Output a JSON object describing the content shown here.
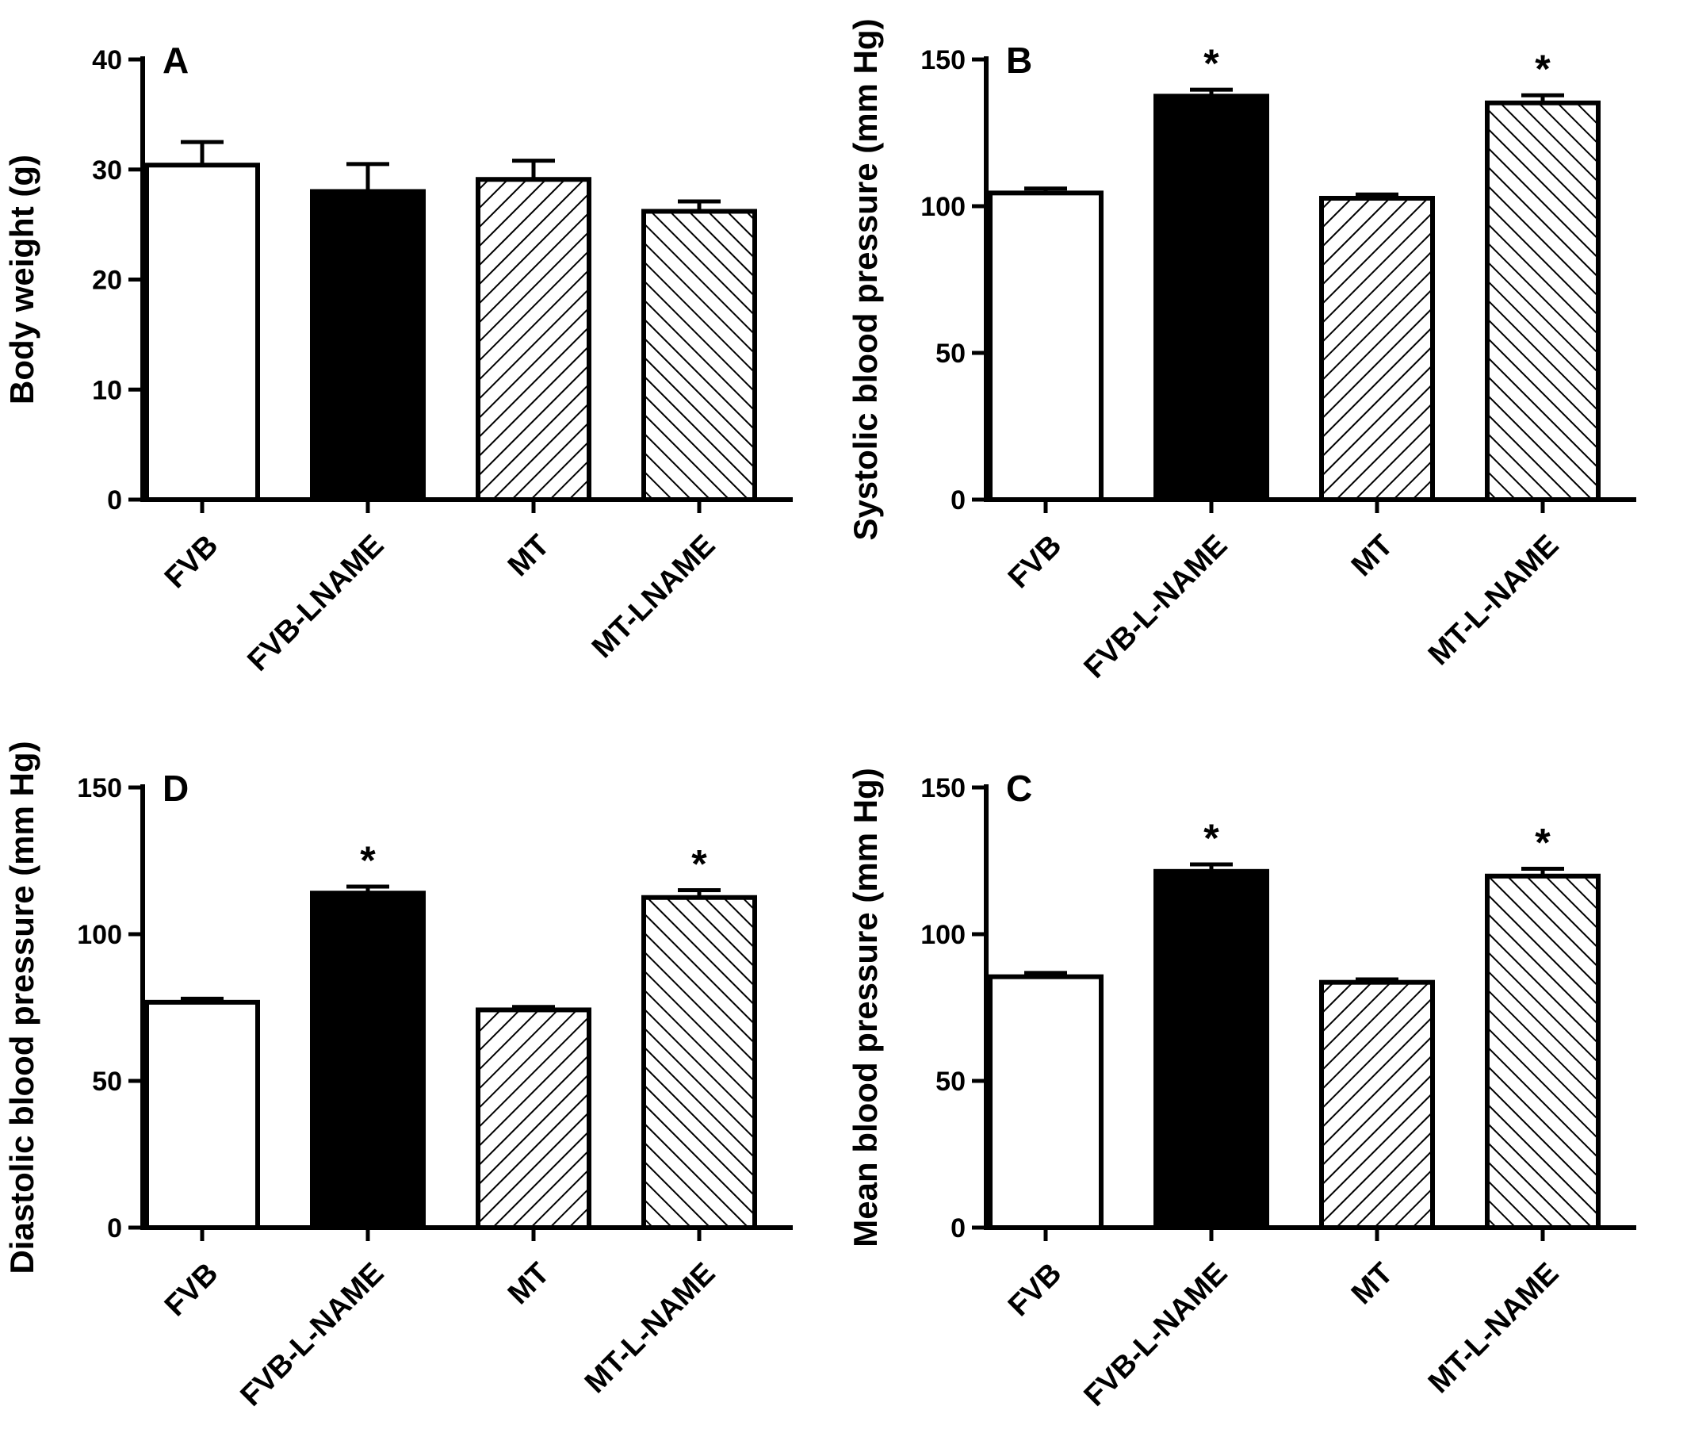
{
  "colors": {
    "axis": "#000000",
    "solid_fill": "#000000",
    "open_fill": "#ffffff",
    "hatch": "#000000"
  },
  "chart_data": [
    {
      "type": "bar",
      "panel_label": "A",
      "ylabel": "Body weight (g)",
      "ylim": [
        0,
        40
      ],
      "yticks": [
        0,
        10,
        20,
        30,
        40
      ],
      "categories": [
        "FVB",
        "FVB-LNAME",
        "MT",
        "MT-LNAME"
      ],
      "values": [
        30.4,
        28.0,
        29.1,
        26.2
      ],
      "errors": [
        2.1,
        2.5,
        1.7,
        0.9
      ],
      "significance": [
        "",
        "",
        "",
        ""
      ],
      "fills": [
        "open",
        "solid",
        "hatch-forward",
        "hatch-back"
      ]
    },
    {
      "type": "bar",
      "panel_label": "B",
      "ylabel": "Systolic blood pressure (mm Hg)",
      "ylim": [
        0,
        150
      ],
      "yticks": [
        0,
        50,
        100,
        150
      ],
      "categories": [
        "FVB",
        "FVB-L-NAME",
        "MT",
        "MT-L-NAME"
      ],
      "values": [
        104.5,
        137.5,
        102.7,
        135.2
      ],
      "errors": [
        1.5,
        2.2,
        1.3,
        2.6
      ],
      "significance": [
        "",
        "*",
        "",
        "*"
      ],
      "fills": [
        "open",
        "solid",
        "hatch-forward",
        "hatch-back"
      ]
    },
    {
      "type": "bar",
      "panel_label": "D",
      "ylabel": "Diastolic blood pressure (mm Hg)",
      "ylim": [
        0,
        150
      ],
      "yticks": [
        0,
        50,
        100,
        150
      ],
      "categories": [
        "FVB",
        "FVB-L-NAME",
        "MT",
        "MT-L-NAME"
      ],
      "values": [
        76.8,
        114.0,
        74.2,
        112.5
      ],
      "errors": [
        1.2,
        2.2,
        1.0,
        2.5
      ],
      "significance": [
        "",
        "*",
        "",
        "*"
      ],
      "fills": [
        "open",
        "solid",
        "hatch-forward",
        "hatch-back"
      ]
    },
    {
      "type": "bar",
      "panel_label": "C",
      "ylabel": "Mean blood pressure (mm Hg)",
      "ylim": [
        0,
        150
      ],
      "yticks": [
        0,
        50,
        100,
        150
      ],
      "categories": [
        "FVB",
        "FVB-L-NAME",
        "MT",
        "MT-L-NAME"
      ],
      "values": [
        85.5,
        121.4,
        83.6,
        119.8
      ],
      "errors": [
        1.3,
        2.4,
        1.0,
        2.5
      ],
      "significance": [
        "",
        "*",
        "",
        "*"
      ],
      "fills": [
        "open",
        "solid",
        "hatch-forward",
        "hatch-back"
      ]
    }
  ]
}
